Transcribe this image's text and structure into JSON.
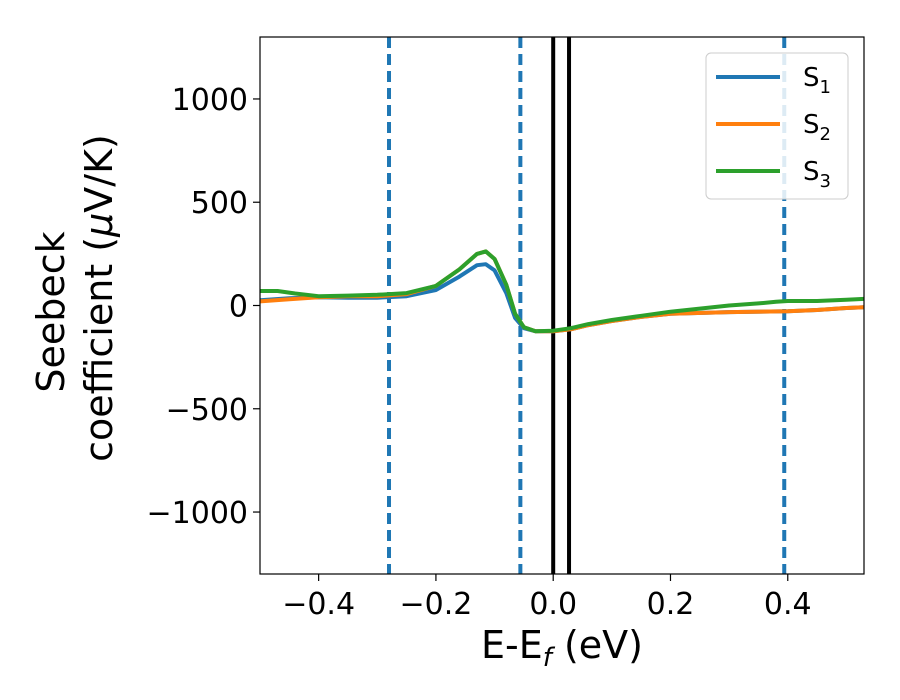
{
  "chart_data": {
    "type": "line",
    "xlabel": "E-E",
    "xlabel_sub": "f",
    "xlabel_unit": " (eV)",
    "ylabel_line1": "Seebeck",
    "ylabel_line2_text": "coefficient  (",
    "ylabel_mu": "μ",
    "ylabel_unit": "V/K)",
    "xlim": [
      -0.5,
      0.53
    ],
    "ylim": [
      -1300,
      1300
    ],
    "xticks": [
      -0.4,
      -0.2,
      0.0,
      0.2,
      0.4
    ],
    "xtick_labels": [
      "−0.4",
      "−0.2",
      "0.0",
      "0.2",
      "0.4"
    ],
    "yticks": [
      1000,
      500,
      0,
      -500,
      -1000
    ],
    "ytick_labels": [
      "1000",
      "500",
      "0",
      "−500",
      "−1000"
    ],
    "grid": false,
    "legend_position": "top-right",
    "vlines_dashed": [
      -0.28,
      -0.056,
      0.394
    ],
    "vlines_solid": [
      0.0,
      0.027
    ],
    "series": [
      {
        "name": "S",
        "sub": "1",
        "color": "#1f77b4",
        "points": [
          [
            -0.5,
            25
          ],
          [
            -0.45,
            35
          ],
          [
            -0.4,
            40
          ],
          [
            -0.35,
            38
          ],
          [
            -0.3,
            38
          ],
          [
            -0.25,
            45
          ],
          [
            -0.2,
            75
          ],
          [
            -0.16,
            140
          ],
          [
            -0.13,
            195
          ],
          [
            -0.115,
            200
          ],
          [
            -0.1,
            170
          ],
          [
            -0.08,
            60
          ],
          [
            -0.065,
            -60
          ],
          [
            -0.05,
            -110
          ],
          [
            -0.03,
            -125
          ],
          [
            0.0,
            -125
          ],
          [
            0.03,
            -115
          ],
          [
            0.06,
            -95
          ],
          [
            0.1,
            -75
          ],
          [
            0.15,
            -55
          ],
          [
            0.2,
            -40
          ],
          [
            0.3,
            -32
          ],
          [
            0.4,
            -28
          ],
          [
            0.45,
            -22
          ],
          [
            0.5,
            -12
          ],
          [
            0.53,
            -8
          ]
        ]
      },
      {
        "name": "S",
        "sub": "2",
        "color": "#ff7f0e",
        "points": [
          [
            -0.5,
            20
          ],
          [
            -0.45,
            30
          ],
          [
            -0.4,
            40
          ],
          [
            -0.35,
            45
          ],
          [
            -0.3,
            45
          ],
          [
            -0.25,
            55
          ],
          [
            -0.2,
            95
          ],
          [
            -0.16,
            175
          ],
          [
            -0.13,
            250
          ],
          [
            -0.115,
            262
          ],
          [
            -0.1,
            225
          ],
          [
            -0.08,
            100
          ],
          [
            -0.065,
            -40
          ],
          [
            -0.05,
            -105
          ],
          [
            -0.03,
            -125
          ],
          [
            0.0,
            -125
          ],
          [
            0.03,
            -115
          ],
          [
            0.06,
            -95
          ],
          [
            0.1,
            -75
          ],
          [
            0.15,
            -55
          ],
          [
            0.2,
            -40
          ],
          [
            0.3,
            -32
          ],
          [
            0.4,
            -28
          ],
          [
            0.45,
            -22
          ],
          [
            0.5,
            -12
          ],
          [
            0.53,
            -8
          ]
        ]
      },
      {
        "name": "S",
        "sub": "3",
        "color": "#2ca02c",
        "points": [
          [
            -0.5,
            70
          ],
          [
            -0.47,
            70
          ],
          [
            -0.44,
            58
          ],
          [
            -0.4,
            45
          ],
          [
            -0.35,
            48
          ],
          [
            -0.3,
            52
          ],
          [
            -0.25,
            60
          ],
          [
            -0.2,
            95
          ],
          [
            -0.16,
            175
          ],
          [
            -0.13,
            250
          ],
          [
            -0.115,
            262
          ],
          [
            -0.1,
            225
          ],
          [
            -0.08,
            100
          ],
          [
            -0.065,
            -40
          ],
          [
            -0.05,
            -105
          ],
          [
            -0.03,
            -125
          ],
          [
            0.0,
            -122
          ],
          [
            0.03,
            -110
          ],
          [
            0.06,
            -90
          ],
          [
            0.1,
            -70
          ],
          [
            0.15,
            -50
          ],
          [
            0.2,
            -30
          ],
          [
            0.25,
            -15
          ],
          [
            0.3,
            0
          ],
          [
            0.35,
            10
          ],
          [
            0.38,
            18
          ],
          [
            0.4,
            22
          ],
          [
            0.45,
            22
          ],
          [
            0.5,
            28
          ],
          [
            0.53,
            32
          ]
        ]
      }
    ]
  }
}
